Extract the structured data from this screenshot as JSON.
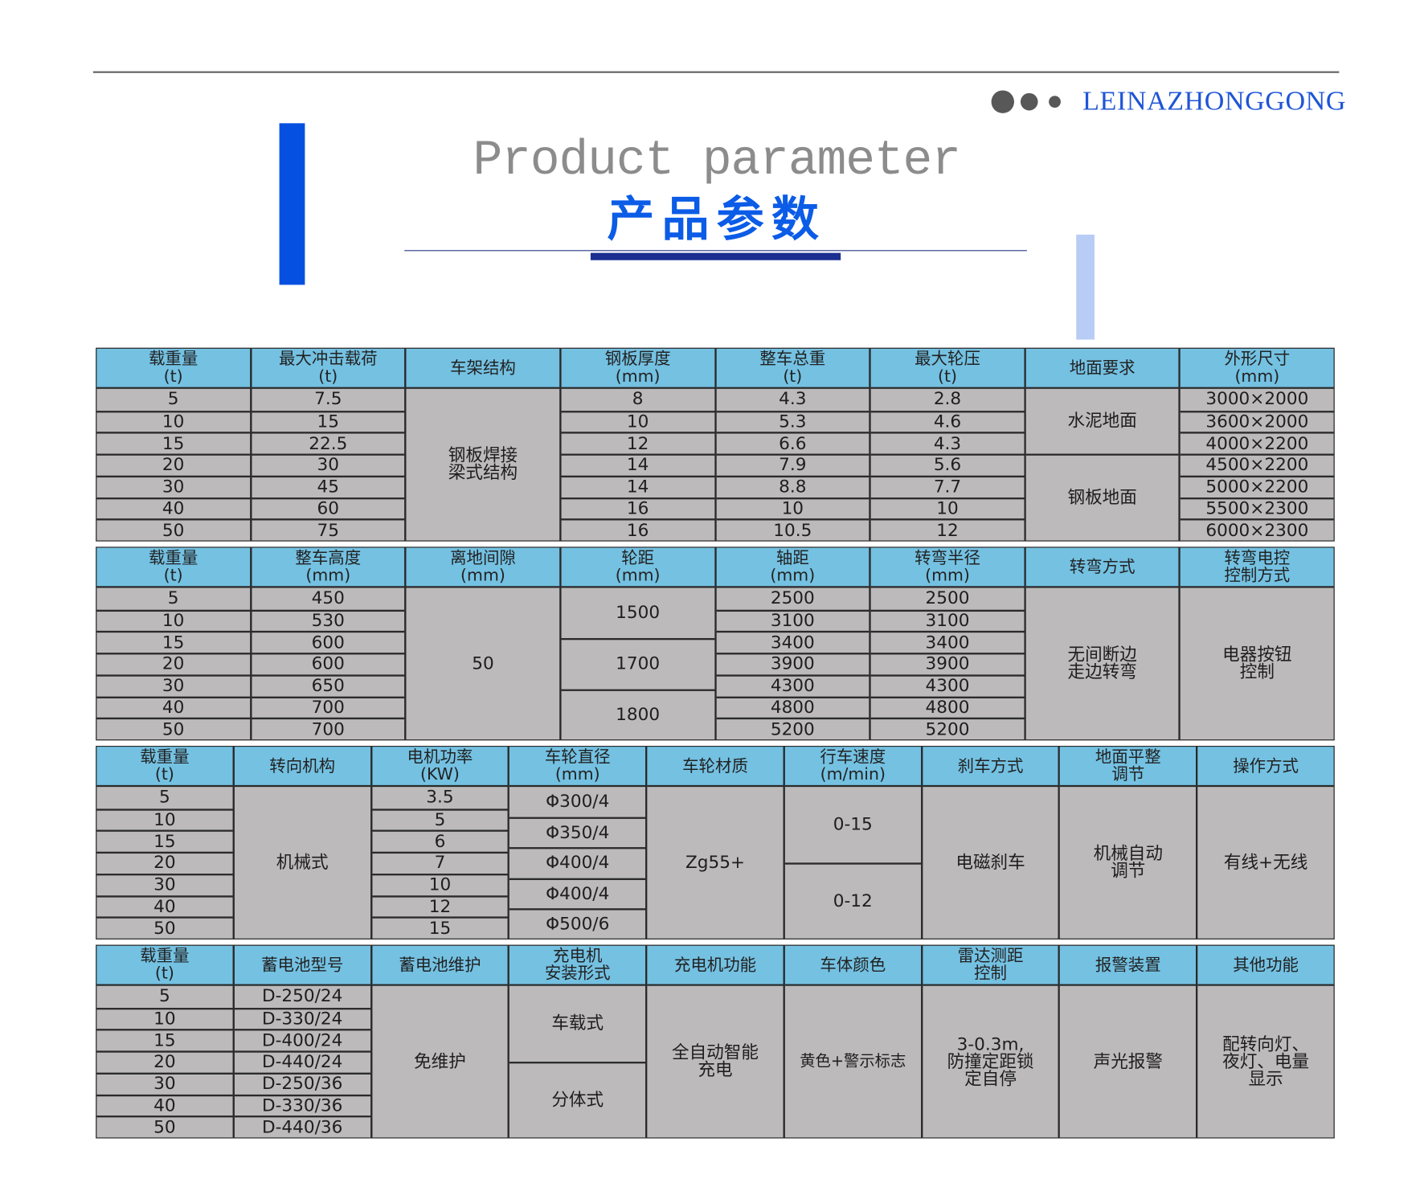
{
  "brand": "LEINAZHONGGONG",
  "title_en": "Product parameter",
  "title_cn": "产品参数",
  "colors": {
    "header_bg": "#74c1e2",
    "body_bg": "#bcbabb",
    "accent_blue": "#0b5ce6",
    "light_blue": "#b8ccf6"
  },
  "tables": [
    {
      "columns": [
        {
          "header": [
            "载重量",
            "(t)"
          ],
          "cells": [
            {
              "t": "5"
            },
            {
              "t": "10"
            },
            {
              "t": "15"
            },
            {
              "t": "20"
            },
            {
              "t": "30"
            },
            {
              "t": "40"
            },
            {
              "t": "50"
            }
          ]
        },
        {
          "header": [
            "最大冲击载荷",
            "(t)"
          ],
          "cells": [
            {
              "t": "7.5"
            },
            {
              "t": "15"
            },
            {
              "t": "22.5"
            },
            {
              "t": "30"
            },
            {
              "t": "45"
            },
            {
              "t": "60"
            },
            {
              "t": "75"
            }
          ]
        },
        {
          "header": [
            "车架结构"
          ],
          "cells": [
            {
              "t": "钢板焊接\n梁式结构",
              "s": 7
            }
          ]
        },
        {
          "header": [
            "钢板厚度",
            "(mm)"
          ],
          "cells": [
            {
              "t": "8"
            },
            {
              "t": "10"
            },
            {
              "t": "12"
            },
            {
              "t": "14"
            },
            {
              "t": "14"
            },
            {
              "t": "16"
            },
            {
              "t": "16"
            }
          ]
        },
        {
          "header": [
            "整车总重",
            "(t)"
          ],
          "cells": [
            {
              "t": "4.3"
            },
            {
              "t": "5.3"
            },
            {
              "t": "6.6"
            },
            {
              "t": "7.9"
            },
            {
              "t": "8.8"
            },
            {
              "t": "10"
            },
            {
              "t": "10.5"
            }
          ]
        },
        {
          "header": [
            "最大轮压",
            "(t)"
          ],
          "cells": [
            {
              "t": "2.8"
            },
            {
              "t": "4.6"
            },
            {
              "t": "4.3"
            },
            {
              "t": "5.6"
            },
            {
              "t": "7.7"
            },
            {
              "t": "10"
            },
            {
              "t": "12"
            }
          ]
        },
        {
          "header": [
            "地面要求"
          ],
          "cells": [
            {
              "t": "水泥地面",
              "s": 3
            },
            {
              "t": "钢板地面",
              "s": 4
            }
          ]
        },
        {
          "header": [
            "外形尺寸",
            "(mm)"
          ],
          "cells": [
            {
              "t": "3000×2000"
            },
            {
              "t": "3600×2000"
            },
            {
              "t": "4000×2200"
            },
            {
              "t": "4500×2200"
            },
            {
              "t": "5000×2200"
            },
            {
              "t": "5500×2300"
            },
            {
              "t": "6000×2300"
            }
          ]
        }
      ]
    },
    {
      "columns": [
        {
          "header": [
            "载重量",
            "(t)"
          ],
          "cells": [
            {
              "t": "5"
            },
            {
              "t": "10"
            },
            {
              "t": "15"
            },
            {
              "t": "20"
            },
            {
              "t": "30"
            },
            {
              "t": "40"
            },
            {
              "t": "50"
            }
          ]
        },
        {
          "header": [
            "整车高度",
            "(mm)"
          ],
          "cells": [
            {
              "t": "450"
            },
            {
              "t": "530"
            },
            {
              "t": "600"
            },
            {
              "t": "600"
            },
            {
              "t": "650"
            },
            {
              "t": "700"
            },
            {
              "t": "700"
            }
          ]
        },
        {
          "header": [
            "离地间隙",
            "(mm)"
          ],
          "cells": [
            {
              "t": "50",
              "s": 7
            }
          ]
        },
        {
          "header": [
            "轮距",
            "(mm)"
          ],
          "cells": [
            {
              "t": "1500",
              "s": 2.3333
            },
            {
              "t": "1700",
              "s": 2.3333
            },
            {
              "t": "1800",
              "s": 2.3334
            }
          ]
        },
        {
          "header": [
            "轴距",
            "(mm)"
          ],
          "cells": [
            {
              "t": "2500"
            },
            {
              "t": "3100"
            },
            {
              "t": "3400"
            },
            {
              "t": "3900"
            },
            {
              "t": "4300"
            },
            {
              "t": "4800"
            },
            {
              "t": "5200"
            }
          ]
        },
        {
          "header": [
            "转弯半径",
            "(mm)"
          ],
          "cells": [
            {
              "t": "2500"
            },
            {
              "t": "3100"
            },
            {
              "t": "3400"
            },
            {
              "t": "3900"
            },
            {
              "t": "4300"
            },
            {
              "t": "4800"
            },
            {
              "t": "5200"
            }
          ]
        },
        {
          "header": [
            "转弯方式"
          ],
          "cells": [
            {
              "t": "无间断边\n走边转弯",
              "s": 7
            }
          ]
        },
        {
          "header": [
            "转弯电控",
            "控制方式"
          ],
          "cells": [
            {
              "t": "电器按钮\n控制",
              "s": 7
            }
          ]
        }
      ]
    },
    {
      "columns": [
        {
          "header": [
            "载重量",
            "(t)"
          ],
          "cells": [
            {
              "t": "5"
            },
            {
              "t": "10"
            },
            {
              "t": "15"
            },
            {
              "t": "20"
            },
            {
              "t": "30"
            },
            {
              "t": "40"
            },
            {
              "t": "50"
            }
          ]
        },
        {
          "header": [
            "转向机构"
          ],
          "cells": [
            {
              "t": "机械式",
              "s": 7
            }
          ]
        },
        {
          "header": [
            "电机功率",
            "(KW)"
          ],
          "cells": [
            {
              "t": "3.5"
            },
            {
              "t": "5"
            },
            {
              "t": "6"
            },
            {
              "t": "7"
            },
            {
              "t": "10"
            },
            {
              "t": "12"
            },
            {
              "t": "15"
            }
          ]
        },
        {
          "header": [
            "车轮直径",
            "(mm)"
          ],
          "cells": [
            {
              "t": "Φ300/4",
              "s": 1.4
            },
            {
              "t": "Φ350/4",
              "s": 1.4
            },
            {
              "t": "Φ400/4",
              "s": 1.4
            },
            {
              "t": "Φ400/4",
              "s": 1.4
            },
            {
              "t": "Φ500/6",
              "s": 1.4
            }
          ]
        },
        {
          "header": [
            "车轮材质"
          ],
          "cells": [
            {
              "t": "Zg55+",
              "s": 7
            }
          ]
        },
        {
          "header": [
            "行车速度",
            "(m/min)"
          ],
          "cells": [
            {
              "t": "0-15",
              "s": 3.5
            },
            {
              "t": "0-12",
              "s": 3.5
            }
          ]
        },
        {
          "header": [
            "刹车方式"
          ],
          "cells": [
            {
              "t": "电磁刹车",
              "s": 7
            }
          ]
        },
        {
          "header": [
            "地面平整",
            "调节"
          ],
          "cells": [
            {
              "t": "机械自动\n调节",
              "s": 7
            }
          ]
        },
        {
          "header": [
            "操作方式"
          ],
          "cells": [
            {
              "t": "有线+无线",
              "s": 7
            }
          ]
        }
      ]
    },
    {
      "columns": [
        {
          "header": [
            "载重量",
            "(t)"
          ],
          "cells": [
            {
              "t": "5"
            },
            {
              "t": "10"
            },
            {
              "t": "15"
            },
            {
              "t": "20"
            },
            {
              "t": "30"
            },
            {
              "t": "40"
            },
            {
              "t": "50"
            }
          ]
        },
        {
          "header": [
            "蓄电池型号"
          ],
          "cells": [
            {
              "t": "D-250/24"
            },
            {
              "t": "D-330/24"
            },
            {
              "t": "D-400/24"
            },
            {
              "t": "D-440/24"
            },
            {
              "t": "D-250/36"
            },
            {
              "t": "D-330/36"
            },
            {
              "t": "D-440/36"
            }
          ]
        },
        {
          "header": [
            "蓄电池维护"
          ],
          "cells": [
            {
              "t": "免维护",
              "s": 7
            }
          ]
        },
        {
          "header": [
            "充电机",
            "安装形式"
          ],
          "cells": [
            {
              "t": "车载式",
              "s": 3.5
            },
            {
              "t": "分体式",
              "s": 3.5
            }
          ]
        },
        {
          "header": [
            "充电机功能"
          ],
          "cells": [
            {
              "t": "全自动智能\n充电",
              "s": 7
            }
          ]
        },
        {
          "header": [
            "车体颜色"
          ],
          "cells": [
            {
              "t": "黄色+警示标志",
              "s": 7,
              "small": true
            }
          ]
        },
        {
          "header": [
            "雷达测距",
            "控制"
          ],
          "cells": [
            {
              "t": "3-0.3m,\n防撞定距锁\n定自停",
              "s": 7
            }
          ]
        },
        {
          "header": [
            "报警装置"
          ],
          "cells": [
            {
              "t": "声光报警",
              "s": 7
            }
          ]
        },
        {
          "header": [
            "其他功能"
          ],
          "cells": [
            {
              "t": "配转向灯、\n夜灯、电量\n显示",
              "s": 7
            }
          ]
        }
      ]
    }
  ]
}
